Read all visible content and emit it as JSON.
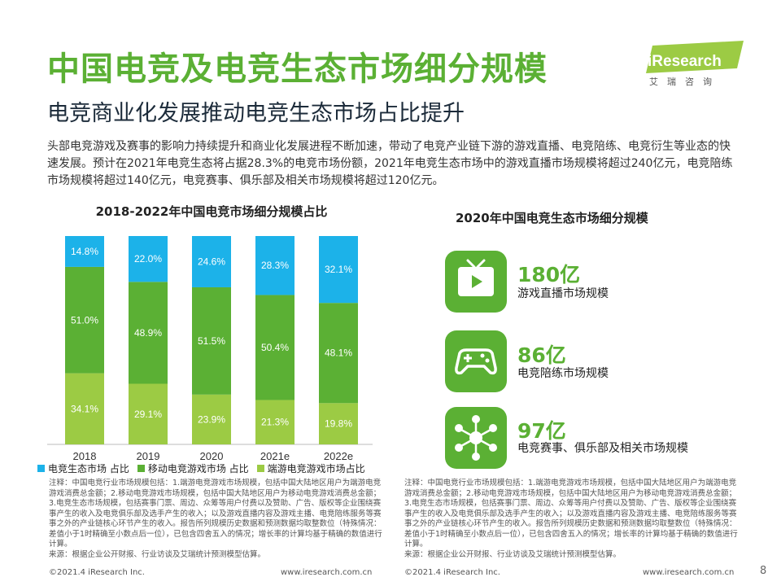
{
  "header": {
    "title": "中国电竞及电竞生态市场细分规模",
    "subtitle": "电竞商业化发展推动电竞生态市场占比提升",
    "intro": "头部电竞游戏及赛事的影响力持续提升和商业化发展进程不断加速，带动了电竞产业链下游的游戏直播、电竞陪练、电竞衍生等业态的快速发展。预计在2021年电竞生态将占据28.3%的电竞市场份额，2021年电竞生态市场中的游戏直播市场规模将超过240亿元，电竞陪练市场规模将超过140亿元，电竞赛事、俱乐部及相关市场规模将超过120亿元。"
  },
  "logo": {
    "name": "iResearch",
    "sub": "艾瑞咨询"
  },
  "colors": {
    "green": "#5BB034",
    "lightgreen": "#9CCB44",
    "blue": "#1CB2E9",
    "dark": "#1C2B3A"
  },
  "chart_data": {
    "type": "bar",
    "stacked": true,
    "percent": true,
    "title": "2018-2022年中国电竞市场细分规模占比",
    "categories": [
      "2018",
      "2019",
      "2020",
      "2021e",
      "2022e"
    ],
    "series": [
      {
        "name": "端游电竞游戏市场占比",
        "color": "#9CCB44",
        "values": [
          34.1,
          29.1,
          23.9,
          21.3,
          19.8
        ]
      },
      {
        "name": "移动电竞游戏市场占比",
        "color": "#5BB034",
        "values": [
          51.0,
          48.9,
          51.5,
          50.4,
          48.1
        ]
      },
      {
        "name": "电竞生态市场占比",
        "color": "#1CB2E9",
        "values": [
          14.8,
          22.0,
          24.6,
          28.3,
          32.1
        ]
      }
    ],
    "legend_order": [
      "电竞生态市场 占比",
      "移动电竞游戏市场 占比",
      "端游电竞游戏市场占比"
    ],
    "ylim": [
      0,
      100
    ],
    "legend_position": "bottom"
  },
  "eco": {
    "title": "2020年中国电竞生态市场细分规模",
    "items": [
      {
        "value": "180亿",
        "label": "游戏直播市场规模",
        "icon": "tv-icon"
      },
      {
        "value": "86亿",
        "label": "电竞陪练市场规模",
        "icon": "gamepad-icon"
      },
      {
        "value": "97亿",
        "label": "电竞赛事、俱乐部及相关市场规模",
        "icon": "network-icon"
      }
    ]
  },
  "notes": {
    "left": "注释：中国电竞行业市场规模包括：1.端游电竞游戏市场规模，包括中国大陆地区用户为端游电竞游戏消费总金额；2.移动电竞游戏市场规模，包括中国大陆地区用户为移动电竞游戏消费总金额；3.电竞生态市场规模，包括赛事门票、周边、众筹等用户付费以及赞助、广告、版权等企业围绕赛事产生的收入及电竞俱乐部及选手产生的收入；以及游戏直播内容及游戏主播、电竞陪练服务等赛事之外的产业链核心环节产生的收入。报告所列规模历史数据和预测数据均取整数位（特殊情况：差值小于1时精确至小数点后一位），已包含四舍五入的情况；增长率的计算均基于精确的数值进行计算。",
    "left_source": "来源：根据企业公开财报、行业访谈及艾瑞统计预测模型估算。",
    "right": "注释：中国电竞行业市场规模包括：1.端游电竞游戏市场规模，包括中国大陆地区用户为端游电竞游戏消费总金额；2.移动电竞游戏市场规模，包括中国大陆地区用户为移动电竞游戏消费总金额；3.电竞生态市场规模，包括赛事门票、周边、众筹等用户付费以及赞助、广告、版权等企业围绕赛事产生的收入及电竞俱乐部及选手产生的收入；以及游戏直播内容及游戏主播、电竞陪练服务等赛事之外的产业链核心环节产生的收入。报告所列规模历史数据和预测数据均取整数位（特殊情况：差值小于1时精确至小数点后一位），已包含四舍五入的情况；增长率的计算均基于精确的数值进行计算。",
    "right_source": "来源：根据企业公开财报、行业访谈及艾瑞统计预测模型估算。"
  },
  "footer": {
    "copy_left": "©2021.4 iResearch Inc.",
    "url_left": "www.iresearch.com.cn",
    "copy_right": "©2021.4 iResearch Inc.",
    "url_right": "www.iresearch.com.cn",
    "page": "8"
  }
}
